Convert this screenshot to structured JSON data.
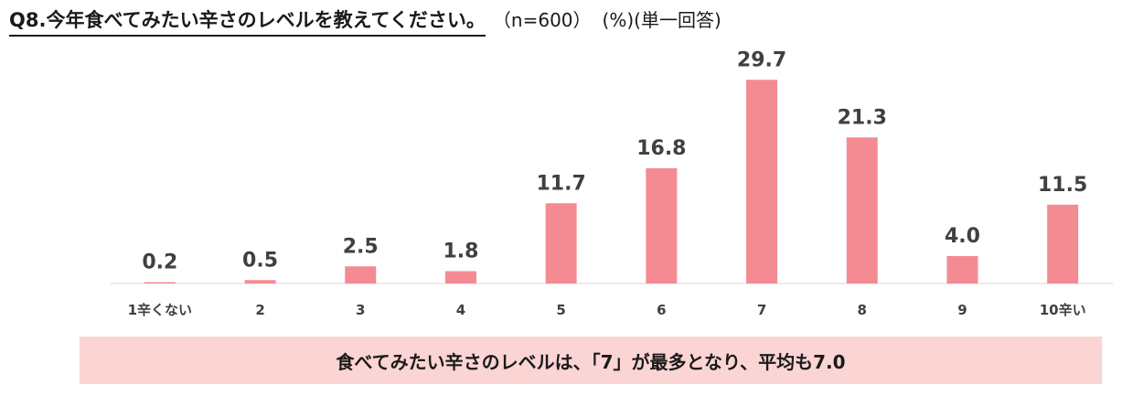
{
  "title": {
    "main": "Q8.今年食べてみたい辛さのレベルを教えてください。",
    "n": "（n=600）",
    "unit": "(%)(単一回答)"
  },
  "chart_data": {
    "type": "bar",
    "categories": [
      "1辛くない",
      "2",
      "3",
      "4",
      "5",
      "6",
      "7",
      "8",
      "9",
      "10辛い"
    ],
    "values": [
      0.2,
      0.5,
      2.5,
      1.8,
      11.7,
      16.8,
      29.7,
      21.3,
      4.0,
      11.5
    ],
    "value_labels": [
      "0.2",
      "0.5",
      "2.5",
      "1.8",
      "11.7",
      "16.8",
      "29.7",
      "21.3",
      "4.0",
      "11.5"
    ],
    "ylim": [
      0,
      30
    ],
    "bar_color": "#f48b93",
    "grid": false
  },
  "banner": {
    "text": "食べてみたい辛さのレベルは、「7」が最多となり、平均も7.0",
    "color": "#fbd4d4"
  }
}
